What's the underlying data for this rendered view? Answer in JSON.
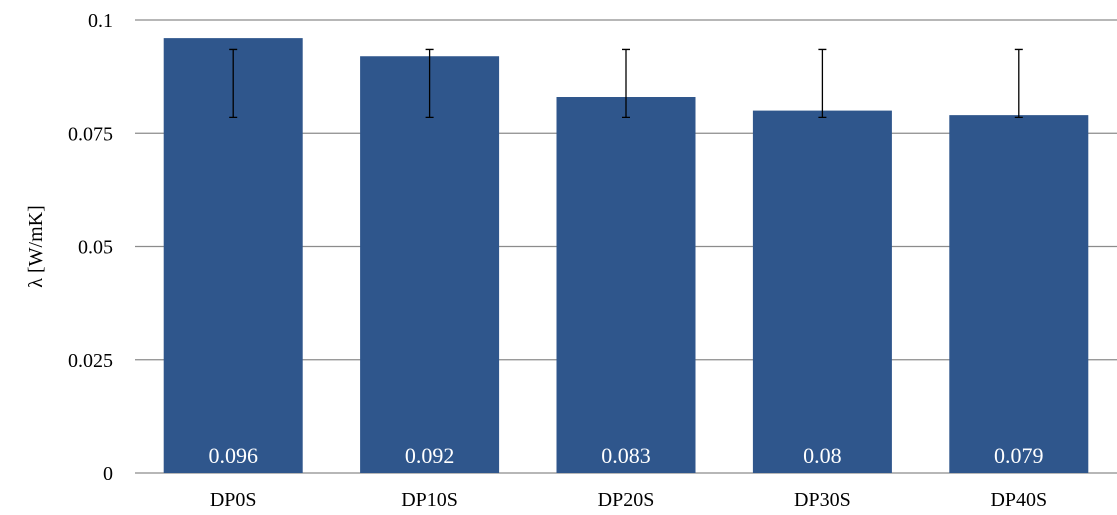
{
  "chart_data": {
    "type": "bar",
    "title": "",
    "xlabel": "",
    "ylabel": "λ [W/mK]",
    "categories": [
      "DP0S",
      "DP10S",
      "DP20S",
      "DP30S",
      "DP40S"
    ],
    "values": [
      0.096,
      0.092,
      0.083,
      0.08,
      0.079
    ],
    "value_labels": [
      "0.096",
      "0.092",
      "0.083",
      "0.08",
      "0.079"
    ],
    "error_bars": [
      {
        "low": 0.0785,
        "high": 0.0935
      },
      {
        "low": 0.0785,
        "high": 0.0935
      },
      {
        "low": 0.0785,
        "high": 0.0935
      },
      {
        "low": 0.0785,
        "high": 0.0935
      },
      {
        "low": 0.0785,
        "high": 0.0935
      }
    ],
    "ylim": [
      0,
      0.1
    ],
    "yticks": [
      0,
      0.025,
      0.05,
      0.075,
      0.1
    ],
    "ytick_labels": [
      "0",
      "0.025",
      "0.05",
      "0.075",
      "0.1"
    ],
    "grid": true,
    "legend": "none",
    "colors": {
      "bar": "#2f568c",
      "grid": "#8c8c8c",
      "data_label": "#ffffff",
      "error_bar": "#000000"
    }
  }
}
